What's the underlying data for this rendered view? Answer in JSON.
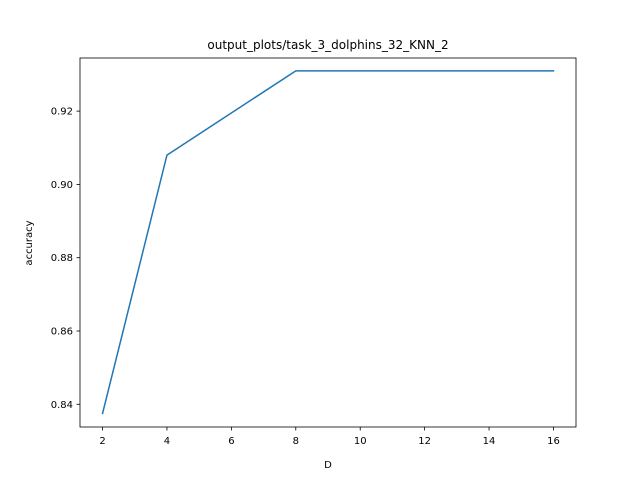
{
  "chart_data": {
    "type": "line",
    "title": "output_plots/task_3_dolphins_32_KNN_2",
    "xlabel": "D",
    "ylabel": "accuracy",
    "x": [
      2,
      4,
      8,
      16
    ],
    "series": [
      {
        "values": [
          0.8375,
          0.908,
          0.931,
          0.931
        ],
        "color": "#1f77b4"
      }
    ],
    "xlim": [
      1.3,
      16.7
    ],
    "ylim": [
      0.8338,
      0.9345
    ],
    "xticks": [
      2,
      4,
      6,
      8,
      10,
      12,
      14,
      16
    ],
    "yticks": [
      0.84,
      0.86,
      0.88,
      0.9,
      0.92
    ],
    "ytick_labels": [
      "0.84",
      "0.86",
      "0.88",
      "0.90",
      "0.92"
    ],
    "grid": false
  }
}
